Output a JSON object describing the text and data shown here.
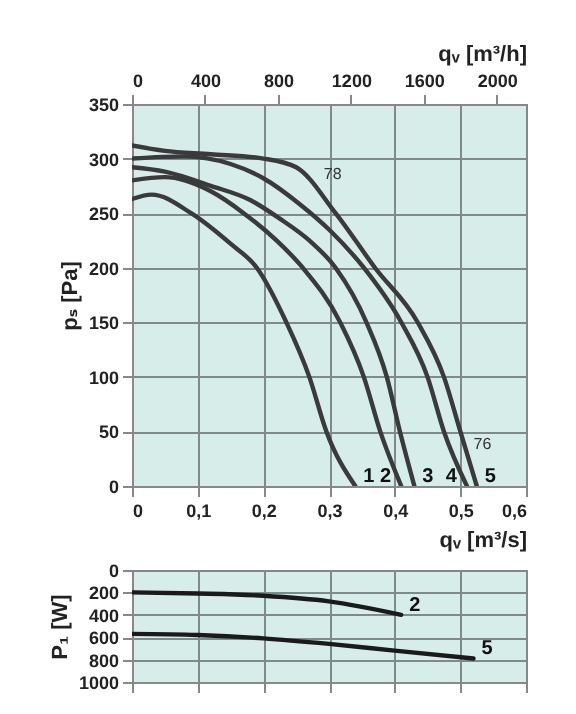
{
  "chart_data": [
    {
      "type": "line",
      "xlabel": "qᵥ [m³/s]",
      "x2label": "qᵥ [m³/h]",
      "ylabel": "pₛ [Pa]",
      "xlim": [
        0,
        0.6
      ],
      "xticks": [
        0,
        {
          "value": 0.1,
          "label": "0,1"
        },
        {
          "value": 0.2,
          "label": "0,2"
        },
        {
          "value": 0.3,
          "label": "0,3"
        },
        {
          "value": 0.4,
          "label": "0,4"
        },
        {
          "value": 0.5,
          "label": "0,5"
        },
        {
          "value": 0.6,
          "label": "0,6"
        }
      ],
      "x2lim": [
        0,
        2160
      ],
      "x2ticks": [
        0,
        400,
        800,
        1200,
        1600,
        2000
      ],
      "ylim": [
        0,
        350
      ],
      "yticks": [
        0,
        50,
        100,
        150,
        200,
        250,
        300,
        350
      ],
      "grid": true,
      "series": [
        {
          "name": "1",
          "color": "#3a3a3a",
          "x": [
            0,
            0.03,
            0.09,
            0.15,
            0.19,
            0.235,
            0.27,
            0.296,
            0.34
          ],
          "values": [
            263,
            267,
            250,
            222,
            200,
            150,
            100,
            50,
            0
          ]
        },
        {
          "name": "2",
          "color": "#3a3a3a",
          "x": [
            0,
            0.05,
            0.12,
            0.17,
            0.22,
            0.26,
            0.317,
            0.353,
            0.378,
            0.41
          ],
          "values": [
            280,
            283,
            270,
            250,
            225,
            200,
            150,
            100,
            50,
            0
          ]
        },
        {
          "name": "3",
          "color": "#3a3a3a",
          "x": [
            0,
            0.05,
            0.12,
            0.18,
            0.225,
            0.27,
            0.31,
            0.357,
            0.388,
            0.408,
            0.43
          ],
          "values": [
            292,
            288,
            275,
            262,
            245,
            225,
            200,
            150,
            100,
            50,
            0
          ]
        },
        {
          "name": "4",
          "color": "#3a3a3a",
          "x": [
            0,
            0.08,
            0.15,
            0.2,
            0.256,
            0.3,
            0.353,
            0.41,
            0.45,
            0.475,
            0.51
          ],
          "values": [
            300,
            302,
            295,
            282,
            258,
            235,
            200,
            150,
            100,
            50,
            0
          ]
        },
        {
          "name": "5",
          "color": "#3a3a3a",
          "x": [
            0,
            0.05,
            0.12,
            0.2,
            0.25,
            0.31,
            0.37,
            0.435,
            0.475,
            0.5,
            0.525
          ],
          "values": [
            312,
            307,
            304,
            300,
            292,
            250,
            200,
            150,
            100,
            50,
            0
          ]
        }
      ],
      "annotations": [
        {
          "text": "78",
          "x": 0.28,
          "y": 285
        },
        {
          "text": "76",
          "x": 0.508,
          "y": 38
        }
      ]
    },
    {
      "type": "line",
      "ylabel": "P₁ [W]",
      "xlim": [
        0,
        0.6
      ],
      "xticks": [
        0,
        0.1,
        0.2,
        0.3,
        0.4,
        0.5,
        0.6
      ],
      "ylim": [
        1000,
        0
      ],
      "yticks": [
        0,
        200,
        400,
        600,
        800,
        1000
      ],
      "grid": true,
      "tick_labels": "y",
      "series": [
        {
          "name": "2",
          "color": "#1a1a1a",
          "x": [
            0,
            0.1,
            0.2,
            0.3,
            0.41
          ],
          "values": [
            200,
            210,
            230,
            280,
            400
          ]
        },
        {
          "name": "5",
          "color": "#1a1a1a",
          "x": [
            0,
            0.1,
            0.2,
            0.3,
            0.4,
            0.52
          ],
          "values": [
            570,
            580,
            610,
            660,
            720,
            790
          ]
        }
      ]
    }
  ]
}
